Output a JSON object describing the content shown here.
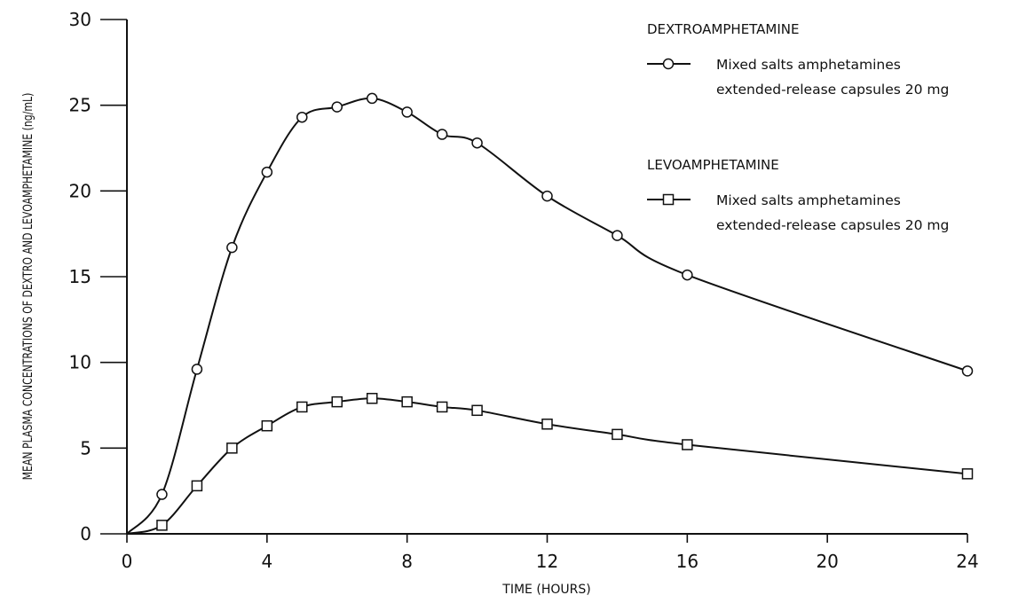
{
  "chart_data": {
    "type": "line",
    "title": "",
    "xlabel": "TIME (HOURS)",
    "ylabel": "MEAN PLASMA CONCENTRATIONS OF DEXTRO AND LEVOAMPHETAMINE (ng/mL)",
    "xlim": [
      0,
      24
    ],
    "ylim": [
      0,
      30
    ],
    "x_ticks": [
      0,
      4,
      8,
      12,
      16,
      20,
      24
    ],
    "y_ticks": [
      0,
      5,
      10,
      15,
      20,
      25,
      30
    ],
    "grid": false,
    "legend_position": "top-right",
    "series": [
      {
        "group": "DEXTROAMPHETAMINE",
        "name": "Mixed salts amphetamines extended-release capsules 20 mg",
        "name_lines": [
          "Mixed salts amphetamines",
          "extended-release capsules 20 mg"
        ],
        "marker": "circle",
        "x": [
          0,
          1,
          2,
          3,
          4,
          5,
          6,
          7,
          8,
          9,
          10,
          12,
          14,
          16,
          24
        ],
        "y": [
          0,
          2.3,
          9.6,
          16.7,
          21.1,
          24.3,
          24.9,
          25.4,
          24.6,
          23.3,
          22.8,
          19.7,
          17.4,
          15.1,
          9.5
        ]
      },
      {
        "group": "LEVOAMPHETAMINE",
        "name": "Mixed salts amphetamines extended-release capsules 20 mg",
        "name_lines": [
          "Mixed salts amphetamines",
          "extended-release capsules 20 mg"
        ],
        "marker": "square",
        "x": [
          0,
          1,
          2,
          3,
          4,
          5,
          6,
          7,
          8,
          9,
          10,
          12,
          14,
          16,
          24
        ],
        "y": [
          0,
          0.5,
          2.8,
          5.0,
          6.3,
          7.4,
          7.7,
          7.9,
          7.7,
          7.4,
          7.2,
          6.4,
          5.8,
          5.2,
          3.5
        ]
      }
    ]
  }
}
